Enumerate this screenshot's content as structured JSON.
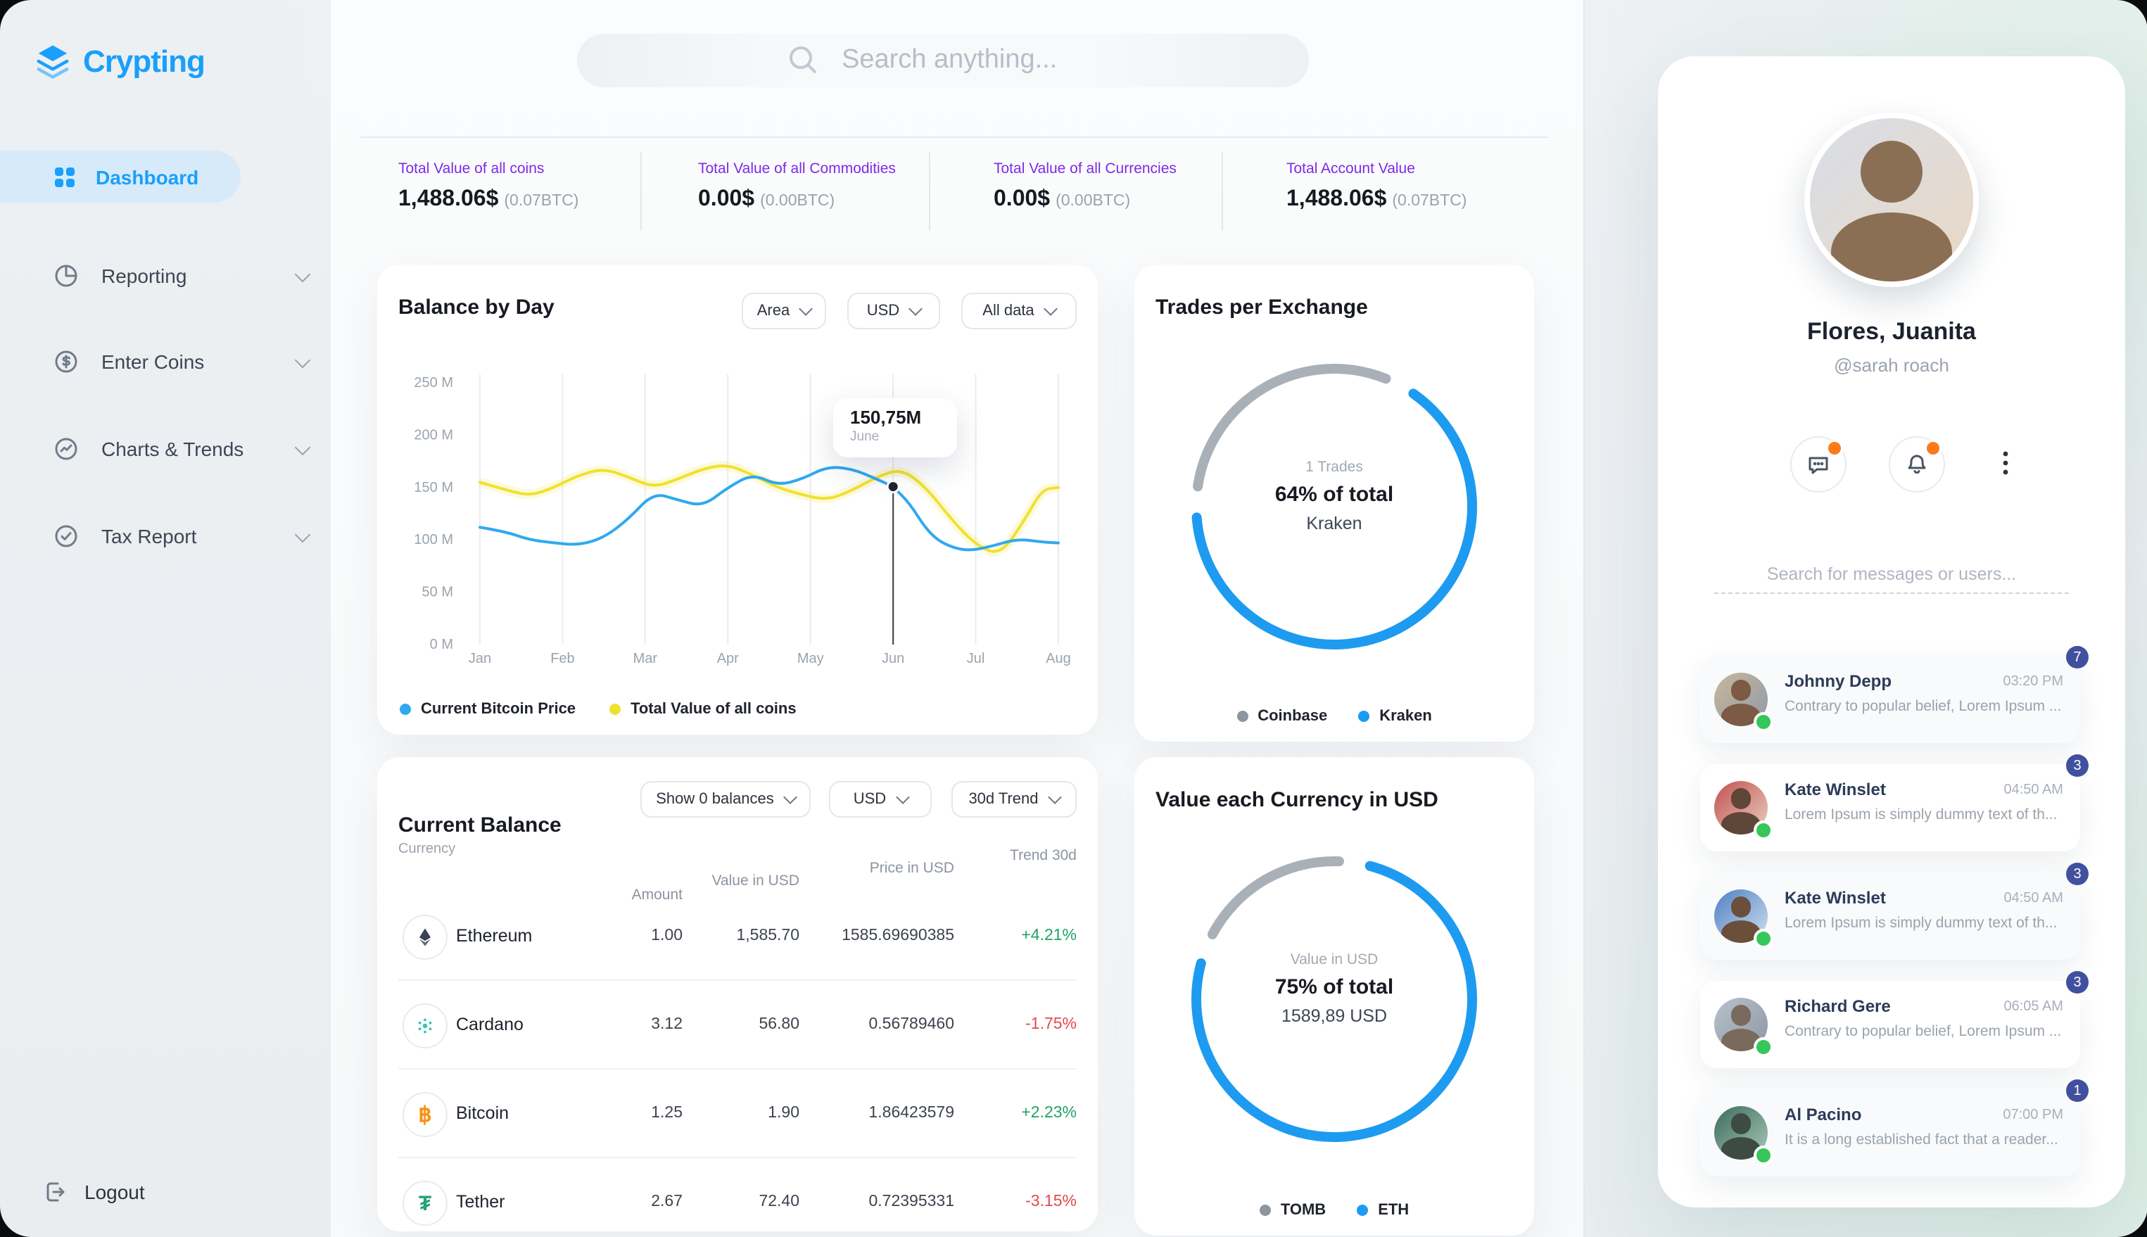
{
  "app": {
    "accent_blue": "#18a0fb",
    "accent_yellow": "#f0e130",
    "purple": "#7d2ae8"
  },
  "sidebar": {
    "logo": "Crypting",
    "items": [
      {
        "label": "Dashboard",
        "active": true
      },
      {
        "label": "Reporting",
        "active": false
      },
      {
        "label": "Enter Coins",
        "active": false
      },
      {
        "label": "Charts & Trends",
        "active": false
      },
      {
        "label": "Tax Report",
        "active": false
      }
    ],
    "logout": "Logout"
  },
  "search": {
    "placeholder": "Search anything..."
  },
  "stats": [
    {
      "label": "Total Value of all coins",
      "value": "1,488.06$",
      "sub": "(0.07BTC)"
    },
    {
      "label": "Total Value of all Commodities",
      "value": "0.00$",
      "sub": "(0.00BTC)"
    },
    {
      "label": "Total Value of all Currencies",
      "value": "0.00$",
      "sub": "(0.00BTC)"
    },
    {
      "label": "Total Account Value",
      "value": "1,488.06$",
      "sub": "(0.07BTC)"
    }
  ],
  "balance_chart": {
    "title": "Balance by Day",
    "filters": [
      "Area",
      "USD",
      "All data"
    ],
    "tooltip": {
      "value": "150,75M",
      "label": "June"
    },
    "legend": [
      "Current Bitcoin Price",
      "Total Value of all coins"
    ],
    "chart_data": {
      "type": "line",
      "ylabel_ticks": [
        "250 M",
        "200 M",
        "150 M",
        "100 M",
        "50 M",
        "0 M"
      ],
      "x_ticks": [
        "Jan",
        "Feb",
        "Mar",
        "Apr",
        "May",
        "Jun",
        "Jul",
        "Aug"
      ],
      "ylim_millions": [
        0,
        250
      ],
      "highlight": {
        "month": "Jun",
        "value_millions": 150.75
      },
      "series": [
        {
          "name": "Current Bitcoin Price",
          "color": "#2fa9ef",
          "points": [
            [
              0,
              112
            ],
            [
              0.3,
              108
            ],
            [
              0.6,
              100
            ],
            [
              0.9,
              97
            ],
            [
              1.2,
              95
            ],
            [
              1.5,
              102
            ],
            [
              1.8,
              120
            ],
            [
              2.1,
              145
            ],
            [
              2.4,
              138
            ],
            [
              2.7,
              132
            ],
            [
              3.0,
              150
            ],
            [
              3.3,
              163
            ],
            [
              3.6,
              152
            ],
            [
              3.9,
              158
            ],
            [
              4.2,
              170
            ],
            [
              4.5,
              168
            ],
            [
              4.8,
              158
            ],
            [
              5.0,
              150.75
            ],
            [
              5.2,
              135
            ],
            [
              5.4,
              110
            ],
            [
              5.6,
              96
            ],
            [
              5.9,
              89
            ],
            [
              6.2,
              94
            ],
            [
              6.5,
              101
            ],
            [
              6.8,
              98
            ],
            [
              7.0,
              97
            ]
          ]
        },
        {
          "name": "Total Value of all coins",
          "color": "#f0e130",
          "points": [
            [
              0,
              155
            ],
            [
              0.3,
              148
            ],
            [
              0.6,
              142
            ],
            [
              0.9,
              150
            ],
            [
              1.2,
              162
            ],
            [
              1.5,
              168
            ],
            [
              1.8,
              160
            ],
            [
              2.1,
              150
            ],
            [
              2.4,
              158
            ],
            [
              2.7,
              168
            ],
            [
              3.0,
              172
            ],
            [
              3.3,
              162
            ],
            [
              3.6,
              150
            ],
            [
              3.9,
              143
            ],
            [
              4.2,
              138
            ],
            [
              4.5,
              147
            ],
            [
              4.8,
              160
            ],
            [
              5.1,
              168
            ],
            [
              5.4,
              150
            ],
            [
              5.7,
              120
            ],
            [
              6.0,
              95
            ],
            [
              6.3,
              85
            ],
            [
              6.6,
              120
            ],
            [
              6.8,
              148
            ],
            [
              7.0,
              150
            ]
          ]
        }
      ]
    }
  },
  "trades_donut": {
    "title": "Trades per Exchange",
    "center_top": "1 Trades",
    "center_main": "64% of total",
    "center_sub": "Kraken",
    "percent": 64,
    "legend": [
      {
        "label": "Coinbase",
        "color": "#8d959e"
      },
      {
        "label": "Kraken",
        "color": "#1d9bf0"
      }
    ]
  },
  "value_donut": {
    "title": "Value each Currency in USD",
    "center_top": "Value in USD",
    "center_main": "75% of total",
    "center_sub": "1589,89 USD",
    "percent": 75,
    "legend": [
      {
        "label": "TOMB",
        "color": "#8d959e"
      },
      {
        "label": "ETH",
        "color": "#1d9bf0"
      }
    ]
  },
  "balance_table": {
    "title": "Current Balance",
    "subtitle": "Currency",
    "filters": [
      "Show 0 balances",
      "USD",
      "30d Trend"
    ],
    "headers": [
      "Amount",
      "Value in USD",
      "Price in USD",
      "Trend 30d"
    ],
    "rows": [
      {
        "name": "Ethereum",
        "amount": "1.00",
        "value": "1,585.70",
        "price": "1585.69690385",
        "trend": "+4.21%",
        "dir": "up"
      },
      {
        "name": "Cardano",
        "amount": "3.12",
        "value": "56.80",
        "price": "0.56789460",
        "trend": "-1.75%",
        "dir": "down"
      },
      {
        "name": "Bitcoin",
        "amount": "1.25",
        "value": "1.90",
        "price": "1.86423579",
        "trend": "+2.23%",
        "dir": "up"
      },
      {
        "name": "Tether",
        "amount": "2.67",
        "value": "72.40",
        "price": "0.72395331",
        "trend": "-3.15%",
        "dir": "down"
      }
    ],
    "coin_glyphs": {
      "btc": "฿",
      "usdt": "₮"
    }
  },
  "profile": {
    "name": "Flores, Juanita",
    "handle": "@sarah roach",
    "search_placeholder": "Search for messages or users..."
  },
  "messages": [
    {
      "name": "Johnny Depp",
      "time": "03:20 PM",
      "text": "Contrary to popular belief, Lorem Ipsum ...",
      "badge": "7"
    },
    {
      "name": "Kate Winslet",
      "time": "04:50 AM",
      "text": "Lorem Ipsum is simply dummy text of th...",
      "badge": "3"
    },
    {
      "name": "Kate Winslet",
      "time": "04:50 AM",
      "text": "Lorem Ipsum is simply dummy text of th...",
      "badge": "3"
    },
    {
      "name": "Richard Gere",
      "time": "06:05 AM",
      "text": "Contrary to popular belief, Lorem Ipsum ...",
      "badge": "3"
    },
    {
      "name": "Al Pacino",
      "time": "07:00 PM",
      "text": "It is a long established fact that a reader...",
      "badge": "1"
    }
  ]
}
